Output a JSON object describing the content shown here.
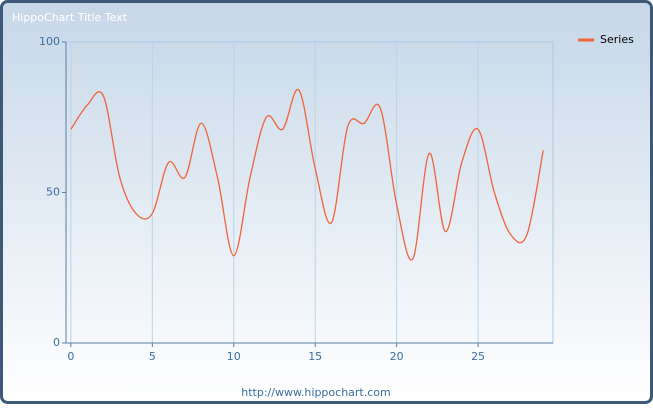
{
  "chart_data": {
    "type": "line",
    "title": "HippoChart Title Text",
    "footer": "http://www.hippochart.com",
    "x": [
      0,
      1,
      2,
      3,
      4,
      5,
      6,
      7,
      8,
      9,
      10,
      11,
      12,
      13,
      14,
      15,
      16,
      17,
      18,
      19,
      20,
      21,
      22,
      23,
      24,
      25,
      26,
      27,
      28,
      29
    ],
    "series": [
      {
        "name": "Series",
        "color": "#f0643c",
        "values": [
          71,
          79,
          82,
          55,
          43,
          43,
          60,
          55,
          73,
          55,
          29,
          55,
          75,
          71,
          84,
          58,
          40,
          72,
          73,
          78,
          46,
          28,
          63,
          37,
          60,
          71,
          50,
          36,
          36,
          64
        ]
      }
    ],
    "xlim": [
      -0.3,
      29.6
    ],
    "ylim": [
      0,
      100
    ],
    "xticks": [
      0,
      5,
      10,
      15,
      20,
      25
    ],
    "yticks": [
      0,
      50,
      100
    ],
    "grid": true,
    "legend": "top-right"
  }
}
